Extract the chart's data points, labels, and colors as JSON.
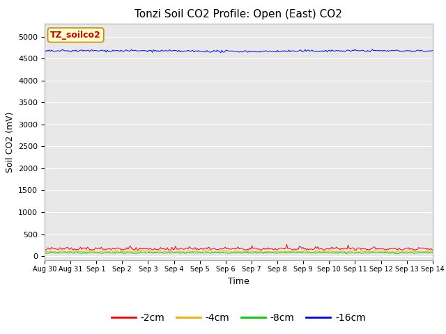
{
  "title": "Tonzi Soil CO2 Profile: Open (East) CO2",
  "ylabel": "Soil CO2 (mV)",
  "xlabel": "Time",
  "watermark": "TZ_soilco2",
  "ylim": [
    -100,
    5300
  ],
  "yticks": [
    0,
    500,
    1000,
    1500,
    2000,
    2500,
    3000,
    3500,
    4000,
    4500,
    5000
  ],
  "n_points": 336,
  "series": {
    "-2cm": {
      "color": "#ff0000",
      "base": 130,
      "noise": 30
    },
    "-4cm": {
      "color": "#ffaa00",
      "base": 105,
      "noise": 20
    },
    "-8cm": {
      "color": "#00cc00",
      "base": 75,
      "noise": 15
    },
    "-16cm": {
      "color": "#0000ff",
      "base": 4670,
      "noise": 12
    }
  },
  "xtick_labels": [
    "Aug 30",
    "Aug 31",
    "Sep 1",
    "Sep 2",
    "Sep 3",
    "Sep 4",
    "Sep 5",
    "Sep 6",
    "Sep 7",
    "Sep 8",
    "Sep 9",
    "Sep 10",
    "Sep 11",
    "Sep 12",
    "Sep 13",
    "Sep 14"
  ],
  "bg_color": "#e8e8e8",
  "grid_color": "#ffffff",
  "title_fontsize": 11,
  "label_fontsize": 9,
  "tick_fontsize": 8,
  "watermark_fontsize": 9,
  "watermark_color": "#cc0000",
  "watermark_bg": "#ffffcc",
  "watermark_edge": "#cc8800"
}
